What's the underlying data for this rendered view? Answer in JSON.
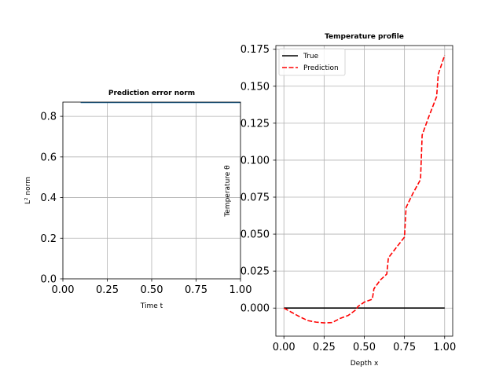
{
  "chart_data": [
    {
      "type": "line",
      "title": "Prediction error norm",
      "xlabel": "Time t",
      "ylabel": "L² norm",
      "xlim": [
        0.0,
        1.0
      ],
      "ylim": [
        0.0,
        0.87
      ],
      "xticks": [
        "0.00",
        "0.25",
        "0.50",
        "0.75",
        "1.00"
      ],
      "yticks": [
        "0.0",
        "0.2",
        "0.4",
        "0.6",
        "0.8"
      ],
      "grid": true,
      "series": [
        {
          "x": [
            0.1,
            1.0
          ],
          "y": [
            0.867,
            0.867
          ],
          "color": "#1f77b4"
        }
      ]
    },
    {
      "type": "line",
      "title": "Temperature profile",
      "xlabel": "Depth x",
      "ylabel": "Temperature θ",
      "xlim": [
        -0.05,
        1.05
      ],
      "ylim": [
        -0.019,
        0.1775
      ],
      "xticks": [
        "0.00",
        "0.25",
        "0.50",
        "0.75",
        "1.00"
      ],
      "yticks": [
        "0.000",
        "0.025",
        "0.050",
        "0.075",
        "0.100",
        "0.125",
        "0.150",
        "0.175"
      ],
      "grid": true,
      "legend_position": "top-left",
      "series": [
        {
          "name": "True",
          "color": "#000000",
          "style": "solid",
          "x": [
            0.0,
            1.0
          ],
          "y": [
            0.0,
            0.0
          ]
        },
        {
          "name": "Prediction",
          "color": "#ff0000",
          "style": "dashed",
          "x": [
            0.0,
            0.05,
            0.1,
            0.15,
            0.2,
            0.25,
            0.3,
            0.35,
            0.4,
            0.45,
            0.46,
            0.5,
            0.55,
            0.56,
            0.6,
            0.64,
            0.65,
            0.7,
            0.75,
            0.76,
            0.8,
            0.85,
            0.86,
            0.9,
            0.95,
            0.96,
            1.0
          ],
          "y": [
            0.0,
            -0.003,
            -0.006,
            -0.0085,
            -0.0095,
            -0.01,
            -0.0098,
            -0.007,
            -0.005,
            -0.001,
            0.001,
            0.004,
            0.006,
            0.013,
            0.019,
            0.023,
            0.034,
            0.041,
            0.048,
            0.068,
            0.077,
            0.087,
            0.117,
            0.129,
            0.143,
            0.158,
            0.171
          ]
        }
      ]
    }
  ]
}
